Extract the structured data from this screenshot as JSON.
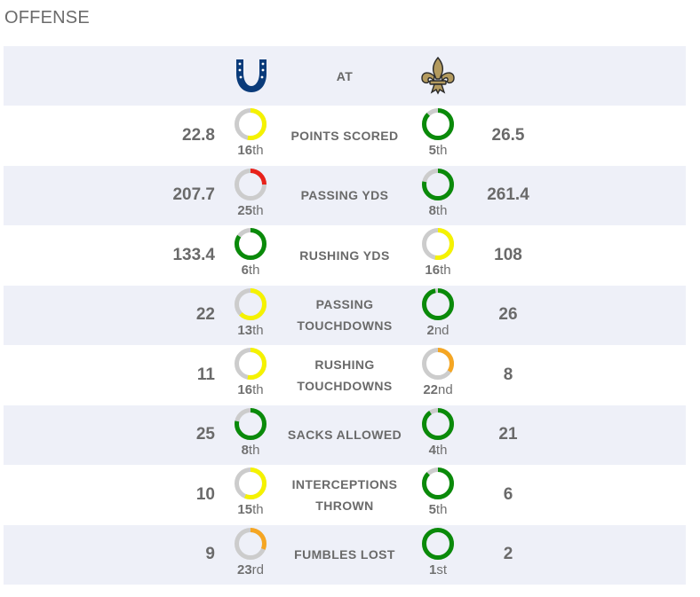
{
  "section_title": "OFFENSE",
  "header": {
    "left_team_logo": "horseshoe-icon",
    "right_team_logo": "fleur-de-lis-icon",
    "at_label": "AT"
  },
  "colors": {
    "green": "#0a8a0a",
    "yellow": "#f5f200",
    "orange": "#f5a623",
    "red": "#e8221b",
    "track": "#cccccc",
    "colts_blue": "#0a3b7a",
    "saints_gold": "#b39a5e"
  },
  "rows": [
    {
      "label": "POINTS SCORED",
      "left_value": "22.8",
      "left_rank_num": "16",
      "left_rank_suffix": "th",
      "left_rank": 16,
      "left_color": "yellow",
      "right_value": "26.5",
      "right_rank_num": "5",
      "right_rank_suffix": "th",
      "right_rank": 5,
      "right_color": "green"
    },
    {
      "label": "PASSING YDS",
      "left_value": "207.7",
      "left_rank_num": "25",
      "left_rank_suffix": "th",
      "left_rank": 25,
      "left_color": "red",
      "right_value": "261.4",
      "right_rank_num": "8",
      "right_rank_suffix": "th",
      "right_rank": 8,
      "right_color": "green"
    },
    {
      "label": "RUSHING YDS",
      "left_value": "133.4",
      "left_rank_num": "6",
      "left_rank_suffix": "th",
      "left_rank": 6,
      "left_color": "green",
      "right_value": "108",
      "right_rank_num": "16",
      "right_rank_suffix": "th",
      "right_rank": 16,
      "right_color": "yellow"
    },
    {
      "label": "PASSING\nTOUCHDOWNS",
      "left_value": "22",
      "left_rank_num": "13",
      "left_rank_suffix": "th",
      "left_rank": 13,
      "left_color": "yellow",
      "right_value": "26",
      "right_rank_num": "2",
      "right_rank_suffix": "nd",
      "right_rank": 2,
      "right_color": "green"
    },
    {
      "label": "RUSHING\nTOUCHDOWNS",
      "left_value": "11",
      "left_rank_num": "16",
      "left_rank_suffix": "th",
      "left_rank": 16,
      "left_color": "yellow",
      "right_value": "8",
      "right_rank_num": "22",
      "right_rank_suffix": "nd",
      "right_rank": 22,
      "right_color": "orange"
    },
    {
      "label": "SACKS ALLOWED",
      "left_value": "25",
      "left_rank_num": "8",
      "left_rank_suffix": "th",
      "left_rank": 8,
      "left_color": "green",
      "right_value": "21",
      "right_rank_num": "4",
      "right_rank_suffix": "th",
      "right_rank": 4,
      "right_color": "green"
    },
    {
      "label": "INTERCEPTIONS\nTHROWN",
      "left_value": "10",
      "left_rank_num": "15",
      "left_rank_suffix": "th",
      "left_rank": 15,
      "left_color": "yellow",
      "right_value": "6",
      "right_rank_num": "5",
      "right_rank_suffix": "th",
      "right_rank": 5,
      "right_color": "green"
    },
    {
      "label": "FUMBLES LOST",
      "left_value": "9",
      "left_rank_num": "23",
      "left_rank_suffix": "rd",
      "left_rank": 23,
      "left_color": "orange",
      "right_value": "2",
      "right_rank_num": "1",
      "right_rank_suffix": "st",
      "right_rank": 1,
      "right_color": "green"
    }
  ]
}
